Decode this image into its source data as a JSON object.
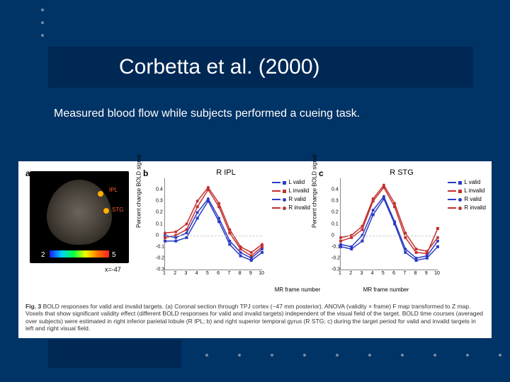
{
  "slide": {
    "title": "Corbetta et al. (2000)",
    "subtitle": "Measured blood flow while subjects performed a cueing task.",
    "background_color": "#003366",
    "title_bar_color": "#002855",
    "title_color": "#ffffff",
    "title_fontsize": 30,
    "subtitle_fontsize": 16
  },
  "figure": {
    "panel_a": {
      "label": "a",
      "ipl_label": "IPL",
      "stg_label": "STG",
      "colorbar_min": "2",
      "colorbar_max": "5",
      "slice_label": "x=-47",
      "colorbar_gradient": [
        "#1a1aff",
        "#00d0ff",
        "#00ff40",
        "#f0ff00",
        "#ff7a00",
        "#ff2020"
      ]
    },
    "charts": {
      "ylabel": "Percent change BOLD signal",
      "xlabel": "MR frame number",
      "ylim": [
        -0.3,
        0.5
      ],
      "yticks": [
        -0.3,
        -0.2,
        -0.1,
        0,
        0.1,
        0.2,
        0.3,
        0.4
      ],
      "xlim": [
        1,
        10
      ],
      "xticks": [
        1,
        2,
        3,
        4,
        5,
        6,
        7,
        8,
        9,
        10
      ],
      "grid_color": "#cccccc",
      "axis_color": "#888888",
      "line_width": 1.5,
      "marker_size": 4,
      "series_styles": {
        "L valid": {
          "color": "#2a3cc4",
          "marker": "square"
        },
        "L invalid": {
          "color": "#c43030",
          "marker": "square"
        },
        "R valid": {
          "color": "#2a3cc4",
          "marker": "circle"
        },
        "R invalid": {
          "color": "#c43030",
          "marker": "circle"
        }
      },
      "b": {
        "label": "b",
        "title": "R IPL",
        "series": {
          "L valid": [
            -0.05,
            -0.05,
            -0.02,
            0.15,
            0.3,
            0.12,
            -0.08,
            -0.18,
            -0.22,
            -0.15
          ],
          "L invalid": [
            -0.02,
            0.0,
            0.05,
            0.25,
            0.4,
            0.25,
            0.02,
            -0.12,
            -0.18,
            -0.1
          ],
          "R valid": [
            0.0,
            -0.02,
            0.02,
            0.2,
            0.32,
            0.15,
            -0.05,
            -0.15,
            -0.2,
            -0.12
          ],
          "R invalid": [
            0.02,
            0.03,
            0.1,
            0.3,
            0.42,
            0.28,
            0.05,
            -0.1,
            -0.15,
            -0.08
          ]
        }
      },
      "c": {
        "label": "c",
        "title": "R STG",
        "series": {
          "L valid": [
            -0.1,
            -0.12,
            -0.05,
            0.18,
            0.32,
            0.1,
            -0.15,
            -0.22,
            -0.2,
            -0.1
          ],
          "L invalid": [
            -0.05,
            -0.02,
            0.05,
            0.3,
            0.42,
            0.25,
            -0.02,
            -0.15,
            -0.16,
            0.06
          ],
          "R valid": [
            -0.08,
            -0.1,
            0.0,
            0.22,
            0.34,
            0.12,
            -0.12,
            -0.2,
            -0.18,
            -0.05
          ],
          "R invalid": [
            -0.02,
            0.0,
            0.08,
            0.32,
            0.44,
            0.28,
            0.02,
            -0.12,
            -0.14,
            -0.02
          ]
        }
      }
    },
    "caption": {
      "lead": "Fig. 3",
      "text": " BOLD responses for valid and invalid targets. (a) Coronal section through TPJ cortex (−47 mm posterior). ANOVA (validity × frame) F map transformed to Z map. Voxels that show significant validity effect (different BOLD responses for valid and invalid targets) independent of the visual field of the target. BOLD time courses (averaged over subjects) were estimated in right inferior parietal lobule (R IPL; b) and right superior temporal gyrus (R STG; c) during the target period for valid and invalid targets in left and right visual field."
    }
  }
}
